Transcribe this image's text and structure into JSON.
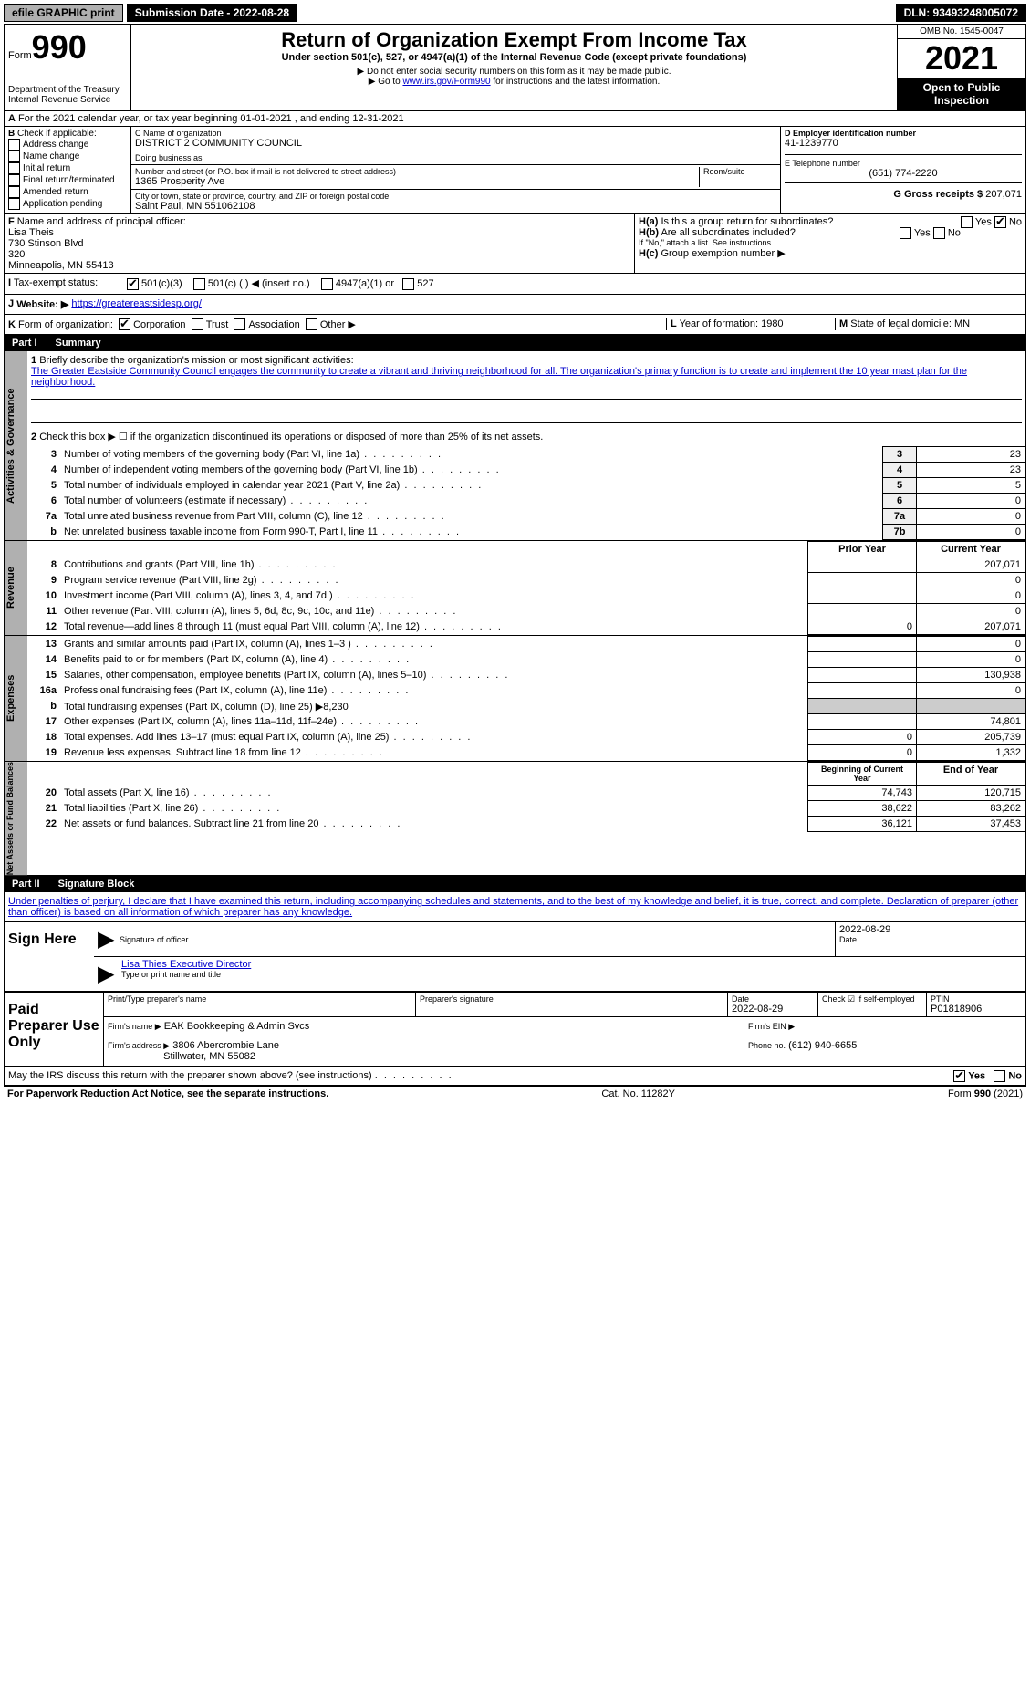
{
  "topbar": {
    "efile": "efile GRAPHIC print",
    "submission_label": "Submission Date - 2022-08-28",
    "dln_label": "DLN: 93493248005072"
  },
  "header": {
    "form_word": "Form",
    "form_number": "990",
    "dept": "Department of the Treasury",
    "irs": "Internal Revenue Service",
    "title": "Return of Organization Exempt From Income Tax",
    "subtitle": "Under section 501(c), 527, or 4947(a)(1) of the Internal Revenue Code (except private foundations)",
    "note1": "▶ Do not enter social security numbers on this form as it may be made public.",
    "note2_pre": "▶ Go to ",
    "note2_link": "www.irs.gov/Form990",
    "note2_post": " for instructions and the latest information.",
    "omb": "OMB No. 1545-0047",
    "year": "2021",
    "public": "Open to Public Inspection"
  },
  "rowA": {
    "label": "A",
    "text": "For the 2021 calendar year, or tax year beginning 01-01-2021    , and ending 12-31-2021"
  },
  "sectionB": {
    "label": "B",
    "check_label": "Check if applicable:",
    "items": [
      "Address change",
      "Name change",
      "Initial return",
      "Final return/terminated",
      "Amended return",
      "Application pending"
    ]
  },
  "sectionC": {
    "name_label": "C Name of organization",
    "org_name": "DISTRICT 2 COMMUNITY COUNCIL",
    "dba_label": "Doing business as",
    "dba": "",
    "addr_label": "Number and street (or P.O. box if mail is not delivered to street address)",
    "room_label": "Room/suite",
    "addr": "1365 Prosperity Ave",
    "city_label": "City or town, state or province, country, and ZIP or foreign postal code",
    "city": "Saint Paul, MN  551062108"
  },
  "sectionD": {
    "ein_label": "D Employer identification number",
    "ein": "41-1239770",
    "tel_label": "E Telephone number",
    "tel": "(651) 774-2220",
    "gross_label": "G Gross receipts $",
    "gross": "207,071"
  },
  "sectionF": {
    "label": "F",
    "name_label": "Name and address of principal officer:",
    "name": "Lisa Theis",
    "addr1": "730 Stinson Blvd",
    "addr2": "320",
    "city": "Minneapolis, MN  55413"
  },
  "sectionH": {
    "a_label": "H(a)",
    "a_text": "Is this a group return for subordinates?",
    "b_label": "H(b)",
    "b_text": "Are all subordinates included?",
    "b_note": "If \"No,\" attach a list. See instructions.",
    "c_label": "H(c)",
    "c_text": "Group exemption number ▶",
    "yes": "Yes",
    "no": "No"
  },
  "rowI": {
    "label": "I",
    "text": "Tax-exempt status:",
    "opts": [
      "501(c)(3)",
      "501(c) (  ) ◀ (insert no.)",
      "4947(a)(1) or",
      "527"
    ]
  },
  "rowJ": {
    "label": "J",
    "text": "Website: ▶",
    "url": "https://greatereastsidesp.org/"
  },
  "rowK": {
    "label": "K",
    "text": "Form of organization:",
    "opts": [
      "Corporation",
      "Trust",
      "Association",
      "Other ▶"
    ],
    "L_label": "L",
    "L_text": "Year of formation:",
    "L_val": "1980",
    "M_label": "M",
    "M_text": "State of legal domicile:",
    "M_val": "MN"
  },
  "part1": {
    "title": "Part I",
    "subtitle": "Summary",
    "tab1": "Activities & Governance",
    "tab2": "Revenue",
    "tab3": "Expenses",
    "tab4": "Net Assets or Fund Balances",
    "line1_label": "1",
    "line1_text": "Briefly describe the organization's mission or most significant activities:",
    "mission": "The Greater Eastside Community Council engages the community to create a vibrant and thriving neighborhood for all. The organization's primary function is to create and implement the 10 year mast plan for the neighborhood.",
    "line2_label": "2",
    "line2_text": "Check this box ▶ ☐ if the organization discontinued its operations or disposed of more than 25% of its net assets.",
    "rows_gov": [
      {
        "n": "3",
        "t": "Number of voting members of the governing body (Part VI, line 1a)",
        "box": "3",
        "v": "23"
      },
      {
        "n": "4",
        "t": "Number of independent voting members of the governing body (Part VI, line 1b)",
        "box": "4",
        "v": "23"
      },
      {
        "n": "5",
        "t": "Total number of individuals employed in calendar year 2021 (Part V, line 2a)",
        "box": "5",
        "v": "5"
      },
      {
        "n": "6",
        "t": "Total number of volunteers (estimate if necessary)",
        "box": "6",
        "v": "0"
      },
      {
        "n": "7a",
        "t": "Total unrelated business revenue from Part VIII, column (C), line 12",
        "box": "7a",
        "v": "0"
      },
      {
        "n": "b",
        "t": "Net unrelated business taxable income from Form 990-T, Part I, line 11",
        "box": "7b",
        "v": "0"
      }
    ],
    "col_prior": "Prior Year",
    "col_current": "Current Year",
    "rows_rev": [
      {
        "n": "8",
        "t": "Contributions and grants (Part VIII, line 1h)",
        "p": "",
        "c": "207,071"
      },
      {
        "n": "9",
        "t": "Program service revenue (Part VIII, line 2g)",
        "p": "",
        "c": "0"
      },
      {
        "n": "10",
        "t": "Investment income (Part VIII, column (A), lines 3, 4, and 7d )",
        "p": "",
        "c": "0"
      },
      {
        "n": "11",
        "t": "Other revenue (Part VIII, column (A), lines 5, 6d, 8c, 9c, 10c, and 11e)",
        "p": "",
        "c": "0"
      },
      {
        "n": "12",
        "t": "Total revenue—add lines 8 through 11 (must equal Part VIII, column (A), line 12)",
        "p": "0",
        "c": "207,071"
      }
    ],
    "rows_exp": [
      {
        "n": "13",
        "t": "Grants and similar amounts paid (Part IX, column (A), lines 1–3 )",
        "p": "",
        "c": "0"
      },
      {
        "n": "14",
        "t": "Benefits paid to or for members (Part IX, column (A), line 4)",
        "p": "",
        "c": "0"
      },
      {
        "n": "15",
        "t": "Salaries, other compensation, employee benefits (Part IX, column (A), lines 5–10)",
        "p": "",
        "c": "130,938"
      },
      {
        "n": "16a",
        "t": "Professional fundraising fees (Part IX, column (A), line 11e)",
        "p": "",
        "c": "0"
      },
      {
        "n": "b",
        "t": "Total fundraising expenses (Part IX, column (D), line 25) ▶8,230",
        "p": "—",
        "c": "—"
      },
      {
        "n": "17",
        "t": "Other expenses (Part IX, column (A), lines 11a–11d, 11f–24e)",
        "p": "",
        "c": "74,801"
      },
      {
        "n": "18",
        "t": "Total expenses. Add lines 13–17 (must equal Part IX, column (A), line 25)",
        "p": "0",
        "c": "205,739"
      },
      {
        "n": "19",
        "t": "Revenue less expenses. Subtract line 18 from line 12",
        "p": "0",
        "c": "1,332"
      }
    ],
    "col_begin": "Beginning of Current Year",
    "col_end": "End of Year",
    "rows_net": [
      {
        "n": "20",
        "t": "Total assets (Part X, line 16)",
        "p": "74,743",
        "c": "120,715"
      },
      {
        "n": "21",
        "t": "Total liabilities (Part X, line 26)",
        "p": "38,622",
        "c": "83,262"
      },
      {
        "n": "22",
        "t": "Net assets or fund balances. Subtract line 21 from line 20",
        "p": "36,121",
        "c": "37,453"
      }
    ]
  },
  "part2": {
    "title": "Part II",
    "subtitle": "Signature Block",
    "decl": "Under penalties of perjury, I declare that I have examined this return, including accompanying schedules and statements, and to the best of my knowledge and belief, it is true, correct, and complete. Declaration of preparer (other than officer) is based on all information of which preparer has any knowledge.",
    "sign_here": "Sign Here",
    "sig_officer": "Signature of officer",
    "sig_date": "2022-08-29",
    "sig_name": "Lisa Thies  Executive Director",
    "sig_type": "Type or print name and title",
    "date_label": "Date",
    "paid": "Paid Preparer Use Only",
    "prep_name_label": "Print/Type preparer's name",
    "prep_sig_label": "Preparer's signature",
    "prep_date": "2022-08-29",
    "check_self": "Check ☑ if self-employed",
    "ptin_label": "PTIN",
    "ptin": "P01818906",
    "firm_name_label": "Firm's name    ▶",
    "firm_name": "EAK Bookkeeping & Admin Svcs",
    "firm_ein_label": "Firm's EIN ▶",
    "firm_addr_label": "Firm's address ▶",
    "firm_addr1": "3806 Abercrombie Lane",
    "firm_addr2": "Stillwater, MN  55082",
    "phone_label": "Phone no.",
    "phone": "(612) 940-6655",
    "discuss": "May the IRS discuss this return with the preparer shown above? (see instructions)",
    "yes": "Yes",
    "no": "No"
  },
  "footer": {
    "left": "For Paperwork Reduction Act Notice, see the separate instructions.",
    "mid": "Cat. No. 11282Y",
    "right": "Form 990 (2021)"
  },
  "colors": {
    "black": "#000000",
    "grey": "#b0b0b0",
    "link": "#0000cc"
  }
}
